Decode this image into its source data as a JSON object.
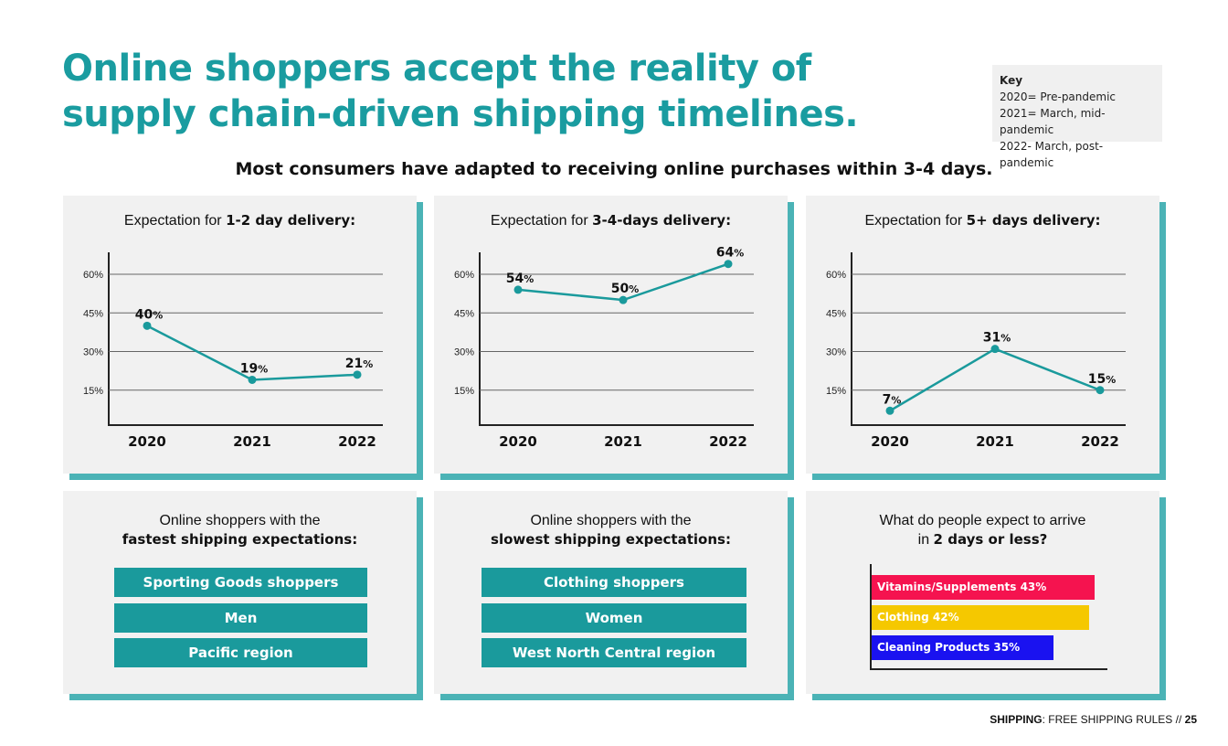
{
  "title": {
    "line1": "Online shoppers accept the reality of",
    "line2": "supply chain-driven shipping timelines."
  },
  "key": {
    "heading": "Key",
    "items": [
      "2020= Pre-pandemic",
      "2021= March, mid-pandemic",
      "2022- March, post-pandemic"
    ]
  },
  "subtitle": "Most consumers have adapted to receiving online purchases within 3-4 days.",
  "charts": [
    {
      "title_prefix": "Expectation for ",
      "title_bold": "1-2 day delivery:"
    },
    {
      "title_prefix": "Expectation for ",
      "title_bold": "3-4-days delivery:"
    },
    {
      "title_prefix": "Expectation for ",
      "title_bold": "5+ days delivery:"
    }
  ],
  "chart_data": [
    {
      "type": "line",
      "title": "Expectation for 1-2 day delivery:",
      "x": [
        "2020",
        "2021",
        "2022"
      ],
      "values": [
        40,
        19,
        21
      ],
      "labels": [
        "40",
        "19",
        "21"
      ],
      "unit": "%",
      "yticks": [
        15,
        30,
        45,
        60
      ],
      "ytick_labels": [
        "15%",
        "30%",
        "45%",
        "60%"
      ],
      "ylim": [
        0,
        67
      ],
      "color": "#1a9a9c"
    },
    {
      "type": "line",
      "title": "Expectation for 3-4-days delivery:",
      "x": [
        "2020",
        "2021",
        "2022"
      ],
      "values": [
        54,
        50,
        64
      ],
      "labels": [
        "54",
        "50",
        "64"
      ],
      "unit": "%",
      "yticks": [
        15,
        30,
        45,
        60
      ],
      "ytick_labels": [
        "15%",
        "30%",
        "45%",
        "60%"
      ],
      "ylim": [
        0,
        67
      ],
      "color": "#1a9a9c"
    },
    {
      "type": "line",
      "title": "Expectation for 5+ days delivery:",
      "x": [
        "2020",
        "2021",
        "2022"
      ],
      "values": [
        7,
        31,
        15
      ],
      "labels": [
        "7",
        "31",
        "15"
      ],
      "unit": "%",
      "yticks": [
        15,
        30,
        45,
        60
      ],
      "ytick_labels": [
        "15%",
        "30%",
        "45%",
        "60%"
      ],
      "ylim": [
        0,
        67
      ],
      "color": "#1a9a9c"
    },
    {
      "type": "bar",
      "title": "What do people expect to arrive in 2 days or less?",
      "orientation": "horizontal",
      "categories": [
        "Vitamins/Supplements",
        "Clothing",
        "Cleaning Products"
      ],
      "values": [
        43,
        42,
        35
      ],
      "labels": [
        "Vitamins/Supplements 43%",
        "Clothing 42%",
        "Cleaning Products 35%"
      ],
      "colors": [
        "#f5134f",
        "#f5c800",
        "#1a12f0"
      ]
    }
  ],
  "fastest": {
    "title_line1": "Online shoppers with the",
    "title_line2": "fastest shipping expectations:",
    "items": [
      "Sporting Goods shoppers",
      "Men",
      "Pacific region"
    ]
  },
  "slowest": {
    "title_line1": "Online shoppers with the",
    "title_line2": "slowest shipping expectations:",
    "items": [
      "Clothing shoppers",
      "Women",
      "West North Central region"
    ]
  },
  "bars_panel": {
    "title_line1": "What do people expect to arrive",
    "title_prefix": "in ",
    "title_bold": "2 days or less?"
  },
  "footer": {
    "section": "SHIPPING",
    "text": ": FREE SHIPPING RULES // ",
    "page": "25"
  }
}
